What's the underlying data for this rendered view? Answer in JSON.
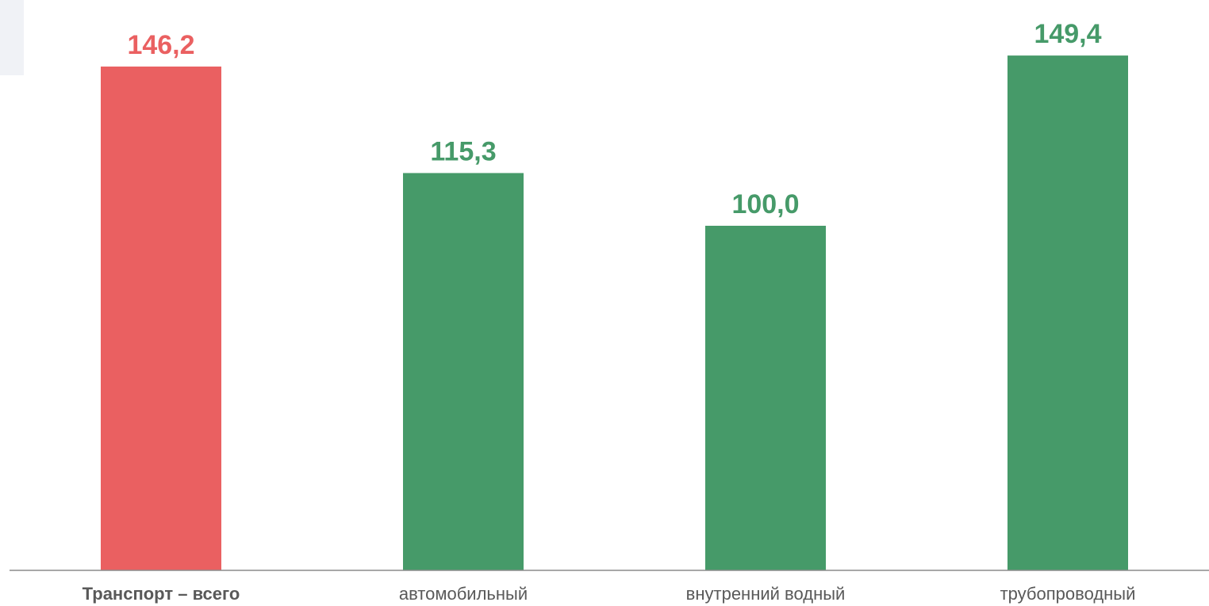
{
  "colors": {
    "total": "#ea6061",
    "mode": "#469a69",
    "axis": "#8c8c8c",
    "category_text": "#595959"
  },
  "chart_data": {
    "type": "bar",
    "categories": [
      "Транспорт – всего",
      "автомобильный",
      "внутренний водный",
      "трубопроводный"
    ],
    "values": [
      146.2,
      115.3,
      100.0,
      149.4
    ],
    "value_labels": [
      "146,2",
      "115,3",
      "100,0",
      "149,4"
    ],
    "bar_colors": [
      "#ea6061",
      "#469a69",
      "#469a69",
      "#469a69"
    ],
    "bold_categories": [
      true,
      false,
      false,
      false
    ],
    "title": "",
    "xlabel": "",
    "ylabel": "",
    "ylim": [
      0,
      150
    ],
    "grid": false,
    "legend": "none"
  }
}
